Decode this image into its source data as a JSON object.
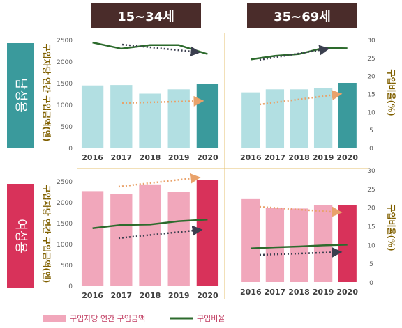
{
  "headers": {
    "young": "15~34세",
    "old": "35~69세"
  },
  "row_labels": {
    "male": "남성용",
    "female": "여성용"
  },
  "axis": {
    "left_title": "구입자당 연간 구입금액(엔)",
    "right_title": "구입비율(%)",
    "left_ticks_male": [
      "0",
      "500",
      "1000",
      "1500",
      "2000",
      "2500"
    ],
    "left_ticks_female": [
      "0",
      "500",
      "1000",
      "1500",
      "2000",
      "2500"
    ],
    "right_ticks_male": [
      "0",
      "5",
      "10",
      "15",
      "20",
      "25",
      "30"
    ],
    "right_ticks_female": [
      "0",
      "5",
      "10",
      "15",
      "20",
      "25",
      "30"
    ]
  },
  "legend": {
    "bar": "구입자당 연간 구입금액",
    "line": "구입비율"
  },
  "colors": {
    "header_bg": "#4a2c2a",
    "male_label_bg": "#3a9a9c",
    "female_label_bg": "#d8325a",
    "male_bar": "#b2dfe2",
    "male_bar_last": "#3a9a9c",
    "female_bar": "#f1a7bb",
    "female_bar_last": "#d8325a",
    "line": "#2d6b2d",
    "axis_text": "#806000",
    "orange_arrow": "#e9a26a",
    "dark_arrow": "#3b3f4f",
    "divider": "#e6c270"
  },
  "chart_data": [
    {
      "type": "bar",
      "panel": "male-15-34",
      "categories": [
        "2016",
        "2017",
        "2018",
        "2019",
        "2020"
      ],
      "series": [
        {
          "name": "구입자당 연간 구입금액",
          "values": [
            1440,
            1450,
            1250,
            1350,
            1470
          ]
        },
        {
          "name": "구입비율",
          "axis": "right",
          "values": [
            29.2,
            27.5,
            28.5,
            28.5,
            26.0
          ]
        }
      ],
      "ylim": [
        0,
        2500
      ],
      "y2lim": [
        0,
        30
      ]
    },
    {
      "type": "bar",
      "panel": "male-35-69",
      "categories": [
        "2016",
        "2017",
        "2018",
        "2019",
        "2020"
      ],
      "series": [
        {
          "name": "구입자당 연간 구입금액",
          "values": [
            1280,
            1350,
            1350,
            1380,
            1500
          ]
        },
        {
          "name": "구입비율",
          "axis": "right",
          "values": [
            24.5,
            25.5,
            26.0,
            27.7,
            27.6
          ]
        }
      ],
      "ylim": [
        0,
        2500
      ],
      "y2lim": [
        0,
        30
      ]
    },
    {
      "type": "bar",
      "panel": "female-15-34",
      "categories": [
        "2016",
        "2017",
        "2018",
        "2019",
        "2020"
      ],
      "series": [
        {
          "name": "구입자당 연간 구입금액",
          "values": [
            2260,
            2190,
            2420,
            2240,
            2530
          ]
        },
        {
          "name": "구입비율",
          "axis": "right",
          "values": [
            1370,
            1450,
            1460,
            1540,
            1580
          ]
        }
      ],
      "ylim": [
        0,
        2500
      ],
      "y2lim": [
        0,
        30
      ]
    },
    {
      "type": "bar",
      "panel": "female-35-69",
      "categories": [
        "2016",
        "2017",
        "2018",
        "2019",
        "2020"
      ],
      "series": [
        {
          "name": "구입자당 연간 구입금액",
          "values": [
            1850,
            1650,
            1640,
            1720,
            1710
          ]
        },
        {
          "name": "구입비율",
          "axis": "right",
          "values": [
            9.0,
            9.3,
            9.5,
            9.8,
            10.0
          ]
        }
      ],
      "ylim": [
        0,
        2500
      ],
      "y2lim": [
        0,
        30
      ]
    }
  ]
}
